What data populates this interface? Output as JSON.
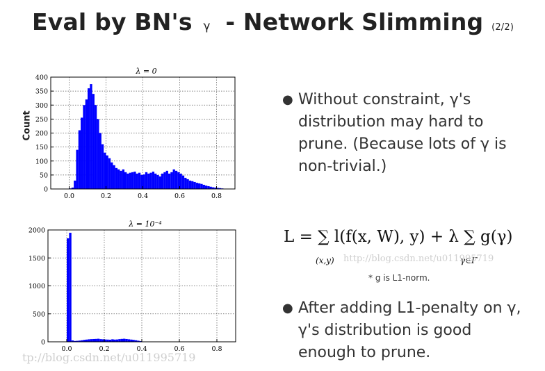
{
  "title": {
    "main": "Eval by BN's",
    "gamma": "γ",
    "rest": "- Network Slimming",
    "suffix": "(2/2)"
  },
  "y_axis_label": "Count",
  "chart_data": [
    {
      "type": "bar",
      "title": "λ = 0",
      "ylabel": "Count",
      "xlim": [
        -0.1,
        0.9
      ],
      "ylim": [
        0,
        400
      ],
      "grid": true,
      "color": "#0000ff",
      "xticks": [
        0.0,
        0.2,
        0.4,
        0.6,
        0.8
      ],
      "xtick_labels": [
        "0.0",
        "0.2",
        "0.4",
        "0.6",
        "0.8"
      ],
      "yticks": [
        0,
        50,
        100,
        150,
        200,
        250,
        300,
        350,
        400
      ],
      "ytick_labels": [
        "0",
        "50",
        "100",
        "150",
        "200",
        "250",
        "300",
        "350",
        "400"
      ],
      "bin_start": 0.0,
      "bin_width": 0.0125,
      "values": [
        2,
        5,
        30,
        140,
        210,
        255,
        300,
        320,
        360,
        375,
        340,
        300,
        250,
        200,
        160,
        130,
        120,
        110,
        95,
        85,
        75,
        70,
        65,
        70,
        60,
        55,
        58,
        60,
        62,
        55,
        58,
        50,
        52,
        60,
        55,
        58,
        62,
        55,
        50,
        45,
        55,
        60,
        65,
        55,
        60,
        70,
        65,
        60,
        55,
        48,
        40,
        35,
        30,
        28,
        25,
        22,
        20,
        18,
        15,
        12,
        10,
        8,
        6,
        5,
        4,
        3,
        2,
        1
      ]
    },
    {
      "type": "bar",
      "title": "λ = 10⁻⁴",
      "xlim": [
        -0.1,
        0.9
      ],
      "ylim": [
        0,
        2000
      ],
      "grid": true,
      "color": "#0000ff",
      "xticks": [
        0.0,
        0.2,
        0.4,
        0.6,
        0.8
      ],
      "xtick_labels": [
        "0.0",
        "0.2",
        "0.4",
        "0.6",
        "0.8"
      ],
      "yticks": [
        0,
        500,
        1000,
        1500,
        2000
      ],
      "ytick_labels": [
        "0",
        "500",
        "1000",
        "1500",
        "2000"
      ],
      "bin_start": 0.0,
      "bin_width": 0.0125,
      "values": [
        1850,
        1950,
        25,
        15,
        18,
        22,
        28,
        35,
        40,
        45,
        48,
        50,
        52,
        55,
        48,
        45,
        42,
        40,
        38,
        45,
        40,
        42,
        48,
        52,
        55,
        50,
        45,
        40,
        35,
        28,
        20,
        12,
        6,
        3
      ]
    }
  ],
  "bullets": [
    {
      "text": "Without constraint, γ's distribution may hard to prune. (Because lots of γ is non-trivial.)"
    },
    {
      "text": "After adding L1-penalty on γ, γ's distribution is good enough to prune."
    }
  ],
  "equation": {
    "main": "L = ∑ l(f(x, W), y) + λ ∑ g(γ)",
    "sub1": "(x,y)",
    "sub2": "γ∈Γ"
  },
  "note": "* g is L1-norm.",
  "watermarks": [
    "http://blog.csdn.net/u011995719",
    "tp://blog.csdn.net/u011995719"
  ]
}
